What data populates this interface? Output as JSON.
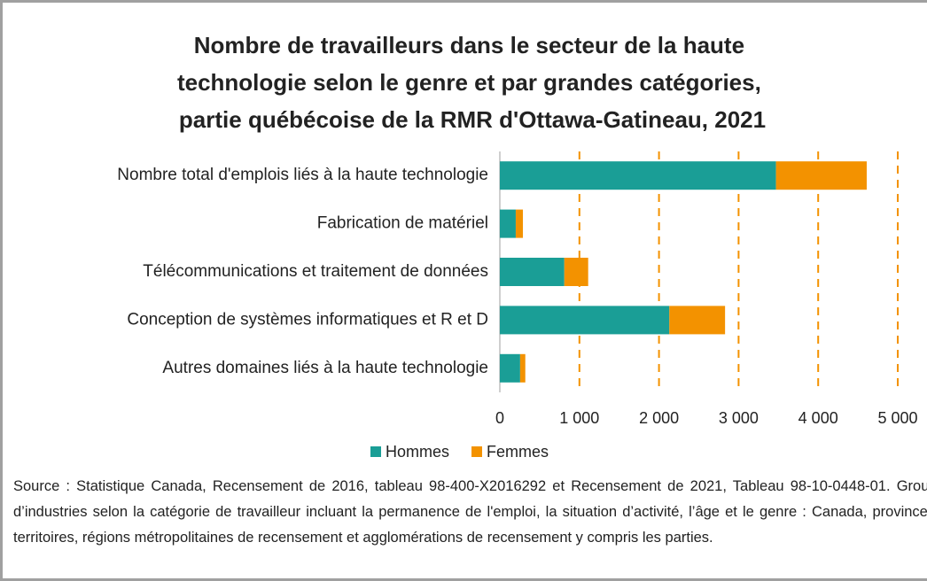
{
  "chart_data": {
    "type": "stacked_bar_horizontal",
    "title": "Nombre de travailleurs dans le secteur de la haute technologie selon le genre et par grandes catégories, partie québécoise de la RMR d'Ottawa-Gatineau, 2021",
    "categories": [
      "Nombre total d'emplois liés à la haute technologie",
      "Fabrication de matériel",
      "Télécommunications et traitement de données",
      "Conception de systèmes informatiques et R et D",
      "Autres domaines liés à la haute technologie"
    ],
    "series": [
      {
        "name": "Hommes",
        "color": "#1a9e96",
        "values": [
          3470,
          200,
          810,
          2130,
          255
        ]
      },
      {
        "name": "Femmes",
        "color": "#f39200",
        "values": [
          1140,
          90,
          300,
          700,
          65
        ]
      }
    ],
    "xlim": [
      0,
      5000
    ],
    "xticks": [
      0,
      {
        "value": 1000,
        "label": "1 000"
      },
      {
        "value": 2000,
        "label": "2 000"
      },
      {
        "value": 3000,
        "label": "3 000"
      },
      {
        "value": 4000,
        "label": "4 000"
      },
      {
        "value": 5000,
        "label": "5 000"
      }
    ],
    "grid": true,
    "legend": "bottom",
    "source": "Source : Statistique Canada, Recensement de 2016, tableau 98-400-X2016292 et Recensement de 2021, Tableau 98-10-0448-01. Groupes d’industries selon la catégorie de travailleur incluant la permanence de l'emploi, la situation d’activité, l’âge et le genre : Canada, provinces et territoires, régions métropolitaines de recensement et agglomérations de recensement y compris les parties."
  }
}
